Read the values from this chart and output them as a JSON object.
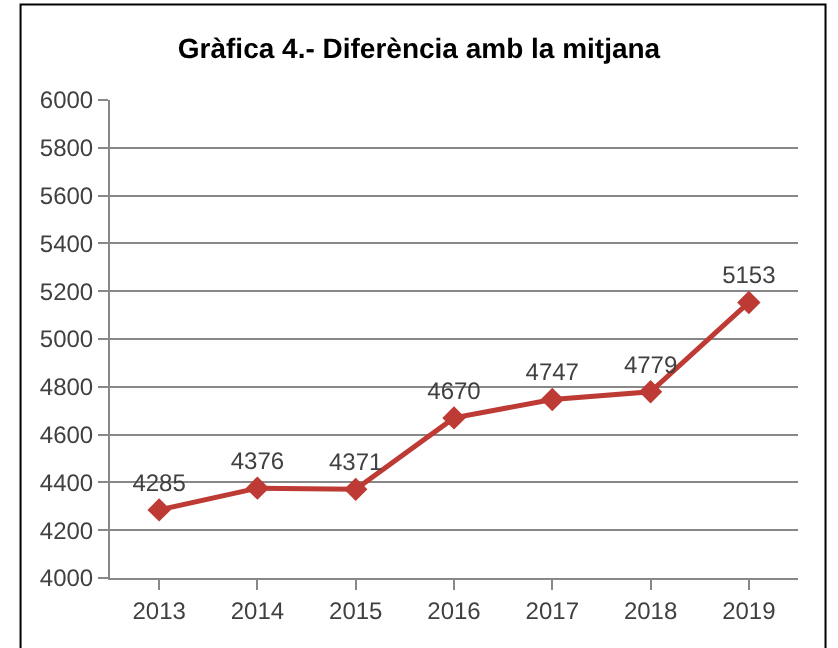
{
  "chart_data": {
    "type": "line",
    "title": "Gràfica 4.- Diferència amb la mitjana",
    "categories": [
      "2013",
      "2014",
      "2015",
      "2016",
      "2017",
      "2018",
      "2019"
    ],
    "series": [
      {
        "color": "#be3a34",
        "values": [
          4285,
          4376,
          4371,
          4670,
          4747,
          4779,
          5153
        ]
      }
    ],
    "ylim": [
      4000,
      6000
    ],
    "yticks": [
      4000,
      4200,
      4400,
      4600,
      4800,
      5000,
      5200,
      5400,
      5600,
      5800,
      6000
    ],
    "grid": "y",
    "legend": false,
    "marker": "diamond",
    "line_style": "solid",
    "data_labels": true
  }
}
